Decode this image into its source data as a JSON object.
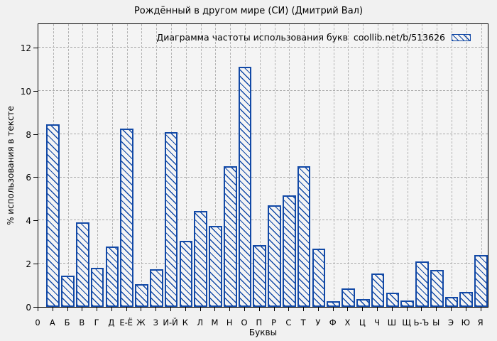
{
  "chart_data": {
    "type": "bar",
    "title": "Рождённый в другом мире (СИ) (Дмитрий Вал)",
    "legend": "Диаграмма частоты использования букв  coollib.net/b/513626",
    "legend_position": "top-right-inside",
    "xlabel": "Буквы",
    "ylabel": "% использования в тексте",
    "x_origin_label": "0",
    "categories": [
      "А",
      "Б",
      "В",
      "Г",
      "Д",
      "Е-Ё",
      "Ж",
      "З",
      "И-Й",
      "К",
      "Л",
      "М",
      "Н",
      "О",
      "П",
      "Р",
      "С",
      "Т",
      "У",
      "Ф",
      "Х",
      "Ц",
      "Ч",
      "Ш",
      "Щ",
      "Ь-Ъ",
      "Ы",
      "Э",
      "Ю",
      "Я"
    ],
    "values": [
      8.45,
      1.45,
      3.9,
      1.8,
      2.8,
      8.25,
      1.05,
      1.75,
      8.1,
      3.05,
      4.45,
      3.75,
      6.5,
      11.1,
      2.85,
      4.7,
      5.15,
      6.5,
      2.7,
      0.25,
      0.85,
      0.35,
      1.55,
      0.65,
      0.3,
      2.1,
      1.7,
      0.45,
      0.7,
      2.4
    ],
    "yticks": [
      0,
      2,
      4,
      6,
      8,
      10,
      12
    ],
    "ylim": [
      0,
      13.15
    ],
    "xlim": [
      0,
      30.55
    ],
    "grid": true,
    "hatch": "\\",
    "bar_color": "#1249a6",
    "grid_color": "#aaaaaa",
    "background": "#f1f1f1",
    "plot_background": "#f4f4f4"
  }
}
